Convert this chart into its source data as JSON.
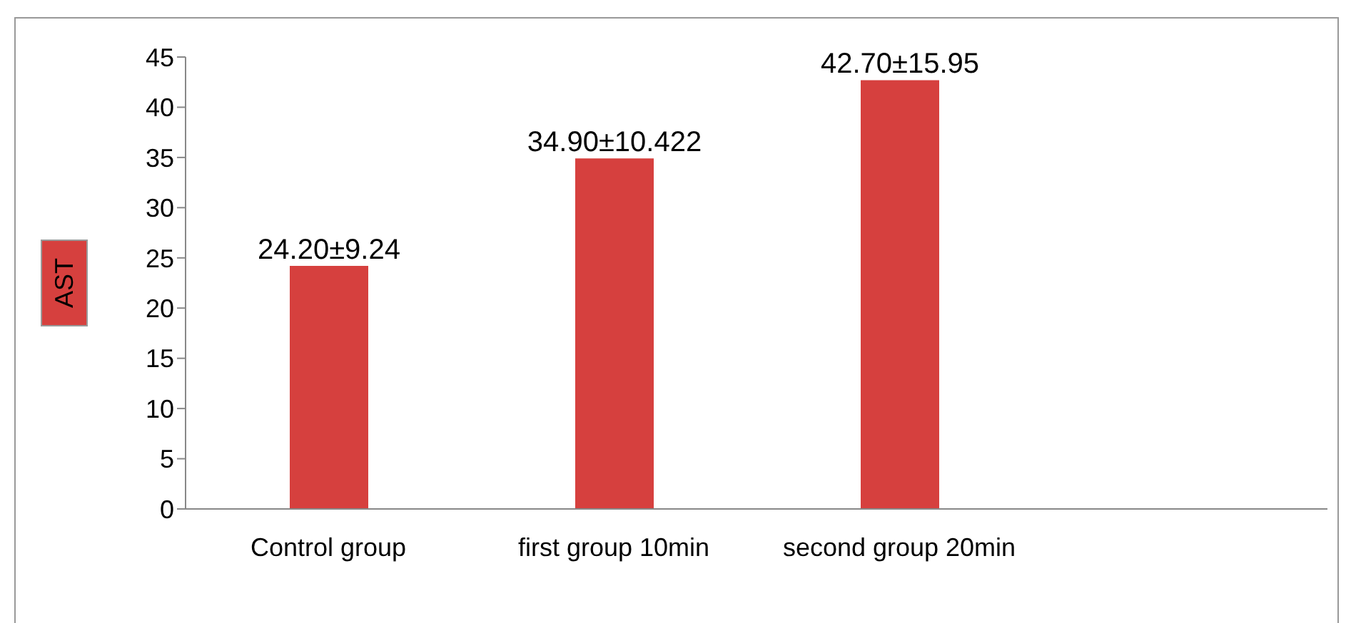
{
  "chart_data": {
    "type": "bar",
    "ylabel": "AST",
    "categories": [
      "Control group",
      "first group 10min",
      "second group 20min",
      null
    ],
    "values": [
      24.2,
      34.9,
      42.7,
      null
    ],
    "value_labels": [
      "24.20±9.24",
      "34.90±10.422",
      "42.70±15.95",
      null
    ],
    "color": "#d6403e",
    "ylim": [
      0,
      45
    ],
    "yticks": [
      0,
      5,
      10,
      15,
      20,
      25,
      30,
      35,
      40,
      45
    ],
    "grid": false,
    "legend": false
  }
}
